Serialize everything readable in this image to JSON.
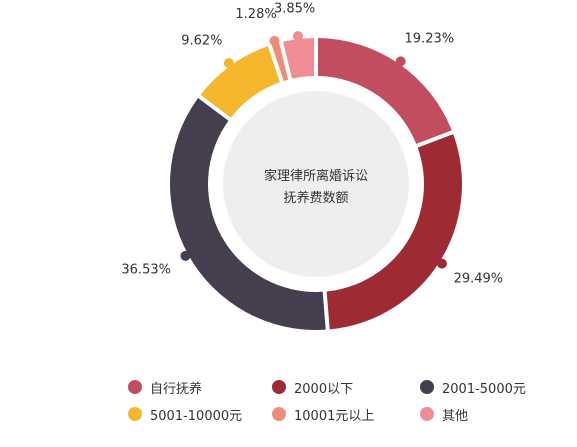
{
  "chart_data": {
    "type": "pie",
    "style": "donut",
    "center_title_lines": [
      "家理律所离婚诉讼",
      "抚养费数额"
    ],
    "categories": [
      "自行抚养",
      "2000以下",
      "2001-5000元",
      "5001-10000元",
      "10001元以上",
      "其他"
    ],
    "values": [
      19.23,
      29.49,
      36.53,
      9.62,
      1.28,
      3.85
    ],
    "value_labels": [
      "19.23%",
      "29.49%",
      "36.53%",
      "9.62%",
      "1.28%",
      "3.85%"
    ],
    "colors": [
      "#c24d5e",
      "#9e2a33",
      "#443e4e",
      "#f4b72c",
      "#ef8c78",
      "#ee8e94"
    ],
    "center_fill": "#eeeeee",
    "legend_position": "bottom"
  }
}
